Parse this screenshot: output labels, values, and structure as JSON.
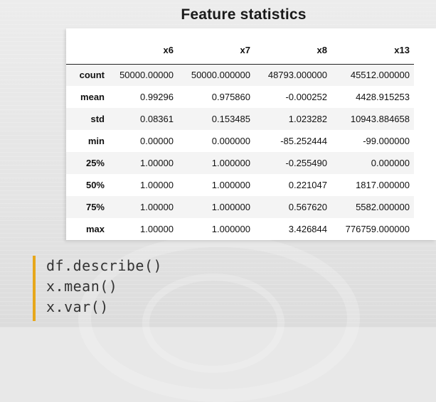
{
  "slide": {
    "title": "Feature statistics"
  },
  "table": {
    "columns": [
      "x6",
      "x7",
      "x8",
      "x13"
    ],
    "rows": [
      {
        "label": "count",
        "values": [
          "50000.00000",
          "50000.000000",
          "48793.000000",
          "45512.000000"
        ]
      },
      {
        "label": "mean",
        "values": [
          "0.99296",
          "0.975860",
          "-0.000252",
          "4428.915253"
        ]
      },
      {
        "label": "std",
        "values": [
          "0.08361",
          "0.153485",
          "1.023282",
          "10943.884658"
        ]
      },
      {
        "label": "min",
        "values": [
          "0.00000",
          "0.000000",
          "-85.252444",
          "-99.000000"
        ]
      },
      {
        "label": "25%",
        "values": [
          "1.00000",
          "1.000000",
          "-0.255490",
          "0.000000"
        ]
      },
      {
        "label": "50%",
        "values": [
          "1.00000",
          "1.000000",
          "0.221047",
          "1817.000000"
        ]
      },
      {
        "label": "75%",
        "values": [
          "1.00000",
          "1.000000",
          "0.567620",
          "5582.000000"
        ]
      },
      {
        "label": "max",
        "values": [
          "1.00000",
          "1.000000",
          "3.426844",
          "776759.000000"
        ]
      }
    ]
  },
  "code": {
    "lines": [
      "df.describe()",
      "x.mean()",
      "x.var()"
    ]
  },
  "colors": {
    "accent_bar": "#e7a71b",
    "table_background": "#ffffff",
    "stripe_row": "#f4f4f4"
  }
}
